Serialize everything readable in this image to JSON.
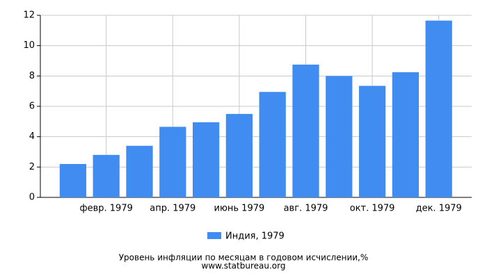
{
  "chart_data": {
    "type": "bar",
    "categories": [
      null,
      "февр. 1979",
      null,
      "апр. 1979",
      null,
      "июнь 1979",
      null,
      "авг. 1979",
      null,
      "окт. 1979",
      null,
      "дек. 1979"
    ],
    "series": [
      {
        "name": "Индия, 1979",
        "color": "#418cf0",
        "values": [
          2.2,
          2.8,
          3.4,
          4.65,
          4.95,
          5.5,
          6.95,
          8.75,
          8.0,
          7.35,
          8.25,
          11.65
        ]
      }
    ],
    "ylim": [
      0,
      12
    ],
    "yticks": [
      0,
      2,
      4,
      6,
      8,
      10,
      12
    ],
    "grid": true,
    "xlabel": "Уровень инфляции по месяцам в годовом исчислении,%",
    "source": "www.statbureau.org"
  }
}
